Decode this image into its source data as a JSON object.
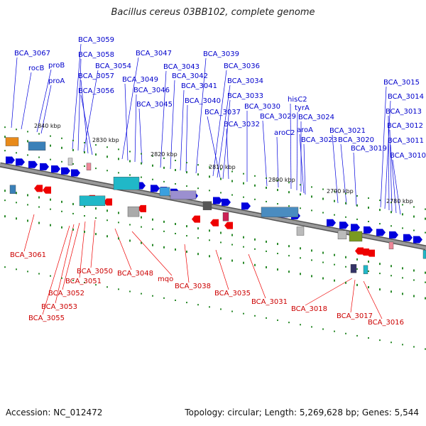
{
  "title": "Bacillus cereus 03BB102, complete genome",
  "footer": {
    "accession": "Accession: NC_012472",
    "topology": "Topology: circular; Length: 5,269,628 bp; Genes: 5,544"
  },
  "colors": {
    "forward": "#0000dd",
    "reverse": "#ee0000",
    "backbone": "#808080",
    "tick": "#2a8a2a"
  },
  "kbp_labels": [
    "2840 kbp",
    "2830 kbp",
    "2820 kbp",
    "2810 kbp",
    "2800 kbp",
    "2790 kbp",
    "2780 kbp"
  ],
  "forward_labels": [
    "BCA_3067",
    "BCA_3059",
    "BCA_3058",
    "BCA_3054",
    "BCA_3057",
    "BCA_3056",
    "rocB",
    "proB",
    "proA",
    "BCA_3047",
    "BCA_3049",
    "BCA_3046",
    "BCA_3045",
    "BCA_3043",
    "BCA_3042",
    "BCA_3041",
    "BCA_3040",
    "BCA_3039",
    "BCA_3036",
    "BCA_3034",
    "BCA_3033",
    "BCA_3030",
    "BCA_3037",
    "BCA_3032",
    "BCA_3029",
    "aroC2",
    "hisC2",
    "tyrA",
    "BCA_3024",
    "aroA",
    "BCA_3023",
    "BCA_3021",
    "BCA_3020",
    "BCA_3019",
    "BCA_3015",
    "BCA_3014",
    "BCA_3013",
    "BCA_3012",
    "BCA_3011",
    "BCA_3010"
  ],
  "reverse_labels": [
    "BCA_3061",
    "BCA_3050",
    "BCA_3051",
    "BCA_3052",
    "BCA_3053",
    "BCA_3055",
    "BCA_3048",
    "mqo",
    "BCA_3038",
    "BCA_3035",
    "BCA_3031",
    "BCA_3018",
    "BCA_3017",
    "BCA_3016"
  ]
}
